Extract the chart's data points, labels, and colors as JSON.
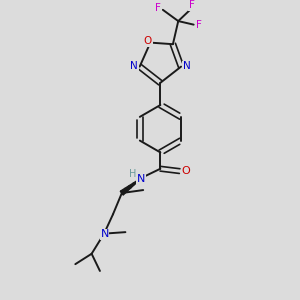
{
  "background_color": "#dcdcdc",
  "bond_color": "#1a1a1a",
  "N_color": "#0000cc",
  "O_color": "#cc0000",
  "F_color": "#cc00cc",
  "H_color": "#6a9a9a",
  "figsize": [
    3.0,
    3.0
  ],
  "dpi": 100,
  "xlim": [
    0,
    10
  ],
  "ylim": [
    0,
    10
  ]
}
